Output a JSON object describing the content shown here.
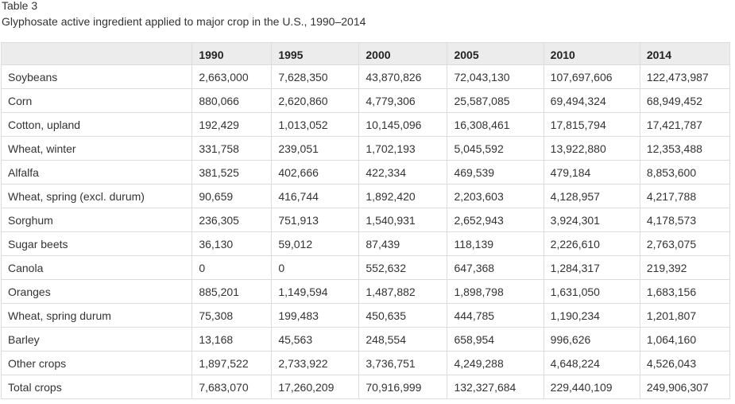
{
  "caption": {
    "label": "Table 3",
    "title": "Glyphosate active ingredient applied to major crop in the U.S., 1990–2014"
  },
  "table": {
    "columns": [
      "",
      "1990",
      "1995",
      "2000",
      "2005",
      "2010",
      "2014"
    ],
    "rows": [
      [
        "Soybeans",
        "2,663,000",
        "7,628,350",
        "43,870,826",
        "72,043,130",
        "107,697,606",
        "122,473,987"
      ],
      [
        "Corn",
        "880,066",
        "2,620,860",
        "4,779,306",
        "25,587,085",
        "69,494,324",
        "68,949,452"
      ],
      [
        "Cotton, upland",
        "192,429",
        "1,013,052",
        "10,145,096",
        "16,308,461",
        "17,815,794",
        "17,421,787"
      ],
      [
        "Wheat, winter",
        "331,758",
        "239,051",
        "1,702,193",
        "5,045,592",
        "13,922,880",
        "12,353,488"
      ],
      [
        "Alfalfa",
        "381,525",
        "402,666",
        "422,334",
        "469,539",
        "479,184",
        "8,853,600"
      ],
      [
        "Wheat, spring (excl. durum)",
        "90,659",
        "416,744",
        "1,892,420",
        "2,203,603",
        "4,128,957",
        "4,217,788"
      ],
      [
        "Sorghum",
        "236,305",
        "751,913",
        "1,540,931",
        "2,652,943",
        "3,924,301",
        "4,178,573"
      ],
      [
        "Sugar beets",
        "36,130",
        "59,012",
        "87,439",
        "118,139",
        "2,226,610",
        "2,763,075"
      ],
      [
        "Canola",
        "0",
        "0",
        "552,632",
        "647,368",
        "1,284,317",
        "219,392"
      ],
      [
        "Oranges",
        "885,201",
        "1,149,594",
        "1,487,882",
        "1,898,798",
        "1,631,050",
        "1,683,156"
      ],
      [
        "Wheat, spring durum",
        "75,308",
        "199,483",
        "450,635",
        "444,785",
        "1,190,234",
        "1,201,807"
      ],
      [
        "Barley",
        "13,168",
        "45,563",
        "248,554",
        "658,954",
        "996,626",
        "1,064,160"
      ],
      [
        "Other crops",
        "1,897,522",
        "2,733,922",
        "3,736,751",
        "4,249,288",
        "4,648,224",
        "4,526,043"
      ],
      [
        "Total crops",
        "7,683,070",
        "17,260,209",
        "70,916,999",
        "132,327,684",
        "229,440,109",
        "249,906,307"
      ]
    ]
  }
}
